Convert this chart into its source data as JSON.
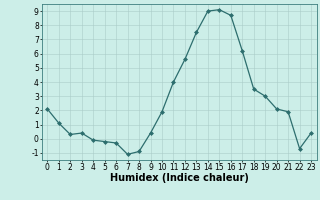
{
  "x": [
    0,
    1,
    2,
    3,
    4,
    5,
    6,
    7,
    8,
    9,
    10,
    11,
    12,
    13,
    14,
    15,
    16,
    17,
    18,
    19,
    20,
    21,
    22,
    23
  ],
  "y": [
    2.1,
    1.1,
    0.3,
    0.4,
    -0.1,
    -0.2,
    -0.3,
    -1.1,
    -0.9,
    0.4,
    1.9,
    4.0,
    5.6,
    7.5,
    9.0,
    9.1,
    8.7,
    6.2,
    3.5,
    3.0,
    2.1,
    1.9,
    -0.7,
    0.4
  ],
  "line_color": "#2d6e6e",
  "marker": "D",
  "marker_size": 2.0,
  "bg_color": "#cceee8",
  "grid_color": "#aaccc8",
  "xlabel": "Humidex (Indice chaleur)",
  "xlim": [
    -0.5,
    23.5
  ],
  "ylim": [
    -1.5,
    9.5
  ],
  "yticks": [
    -1,
    0,
    1,
    2,
    3,
    4,
    5,
    6,
    7,
    8,
    9
  ],
  "xticks": [
    0,
    1,
    2,
    3,
    4,
    5,
    6,
    7,
    8,
    9,
    10,
    11,
    12,
    13,
    14,
    15,
    16,
    17,
    18,
    19,
    20,
    21,
    22,
    23
  ],
  "tick_label_size": 5.5,
  "xlabel_size": 7.0,
  "linewidth": 0.9
}
